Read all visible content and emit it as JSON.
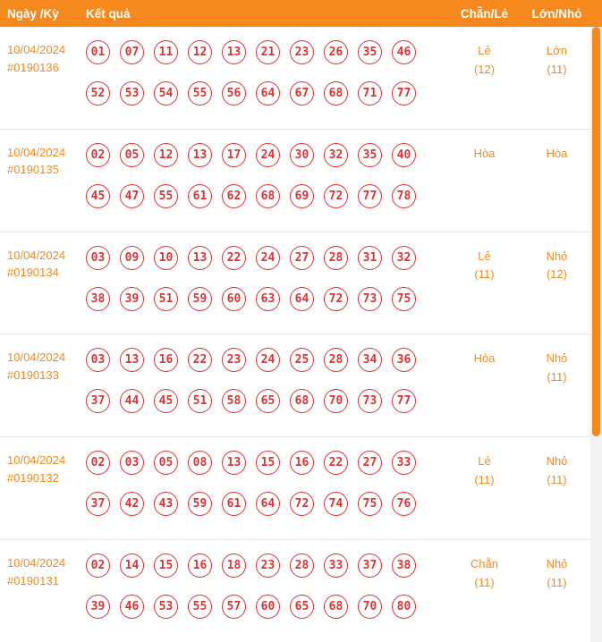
{
  "header": {
    "col_date": "Ngày /Kỳ",
    "col_result": "Kết quả",
    "col_even_odd": "Chẵn/Lẻ",
    "col_big_small": "Lớn/Nhỏ"
  },
  "rows": [
    {
      "date": "10/04/2024",
      "draw_id": "#0190136",
      "numbers_line1": [
        "01",
        "07",
        "11",
        "12",
        "13",
        "21",
        "23",
        "26",
        "35",
        "46"
      ],
      "numbers_line2": [
        "52",
        "53",
        "54",
        "55",
        "56",
        "64",
        "67",
        "68",
        "71",
        "77"
      ],
      "even_odd": "Lẻ",
      "even_odd_count": "(12)",
      "big_small": "Lớn",
      "big_small_count": "(11)"
    },
    {
      "date": "10/04/2024",
      "draw_id": "#0190135",
      "numbers_line1": [
        "02",
        "05",
        "12",
        "13",
        "17",
        "24",
        "30",
        "32",
        "35",
        "40"
      ],
      "numbers_line2": [
        "45",
        "47",
        "55",
        "61",
        "62",
        "68",
        "69",
        "72",
        "77",
        "78"
      ],
      "even_odd": "Hòa",
      "even_odd_count": "",
      "big_small": "Hòa",
      "big_small_count": ""
    },
    {
      "date": "10/04/2024",
      "draw_id": "#0190134",
      "numbers_line1": [
        "03",
        "09",
        "10",
        "13",
        "22",
        "24",
        "27",
        "28",
        "31",
        "32"
      ],
      "numbers_line2": [
        "38",
        "39",
        "51",
        "59",
        "60",
        "63",
        "64",
        "72",
        "73",
        "75"
      ],
      "even_odd": "Lẻ",
      "even_odd_count": "(11)",
      "big_small": "Nhỏ",
      "big_small_count": "(12)"
    },
    {
      "date": "10/04/2024",
      "draw_id": "#0190133",
      "numbers_line1": [
        "03",
        "13",
        "16",
        "22",
        "23",
        "24",
        "25",
        "28",
        "34",
        "36"
      ],
      "numbers_line2": [
        "37",
        "44",
        "45",
        "51",
        "58",
        "65",
        "68",
        "70",
        "73",
        "77"
      ],
      "even_odd": "Hòa",
      "even_odd_count": "",
      "big_small": "Nhỏ",
      "big_small_count": "(11)"
    },
    {
      "date": "10/04/2024",
      "draw_id": "#0190132",
      "numbers_line1": [
        "02",
        "03",
        "05",
        "08",
        "13",
        "15",
        "16",
        "22",
        "27",
        "33"
      ],
      "numbers_line2": [
        "37",
        "42",
        "43",
        "59",
        "61",
        "64",
        "72",
        "74",
        "75",
        "76"
      ],
      "even_odd": "Lẻ",
      "even_odd_count": "(11)",
      "big_small": "Nhỏ",
      "big_small_count": "(11)"
    },
    {
      "date": "10/04/2024",
      "draw_id": "#0190131",
      "numbers_line1": [
        "02",
        "14",
        "15",
        "16",
        "18",
        "23",
        "28",
        "33",
        "37",
        "38"
      ],
      "numbers_line2": [
        "39",
        "46",
        "53",
        "55",
        "57",
        "60",
        "65",
        "68",
        "70",
        "80"
      ],
      "even_odd": "Chẵn",
      "even_odd_count": "(11)",
      "big_small": "Nhỏ",
      "big_small_count": "(11)"
    }
  ],
  "colors": {
    "header_bg": "#F6891E",
    "accent_orange": "#F6891E",
    "number_red": "#E03131",
    "row_divider": "#E6E6E6",
    "scrollbar_track": "#F2F2F2"
  }
}
